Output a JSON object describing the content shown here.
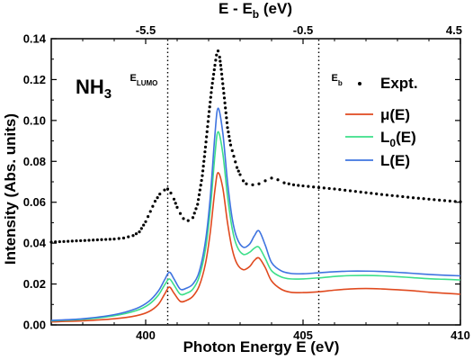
{
  "chart_data": {
    "type": "line",
    "title": "",
    "xlabel": "Photon Energy E (eV)",
    "ylabel": "Intensity (Abs. units)",
    "top_xlabel": "E - E",
    "top_xlabel_sub": "b",
    "top_xlabel_unit": " (eV)",
    "xlim": [
      397,
      410
    ],
    "ylim": [
      0,
      0.14
    ],
    "x_ticks": [
      400,
      405,
      410
    ],
    "y_ticks": [
      "0.00",
      "0.02",
      "0.04",
      "0.06",
      "0.08",
      "0.10",
      "0.12",
      "0.14"
    ],
    "top_ticks": [
      {
        "label": "-5.5",
        "x": 400
      },
      {
        "label": "-0.5",
        "x": 405
      },
      {
        "label": "4.5",
        "x": 410
      }
    ],
    "molecule": {
      "main": "NH",
      "sub": "3"
    },
    "vlines": [
      {
        "x": 400.7,
        "label": "E",
        "sub": "LUMO"
      },
      {
        "x": 405.5,
        "label": "E",
        "sub": "b"
      }
    ],
    "legend_position": "top-right",
    "series": [
      {
        "name": "Expt.",
        "name_main": "Expt.",
        "name_sub": "",
        "name_tail": "",
        "style": "dots",
        "color": "#000000",
        "x": [
          397.0,
          397.4,
          397.8,
          398.2,
          398.6,
          399.0,
          399.3,
          399.6,
          399.8,
          400.0,
          400.15,
          400.3,
          400.45,
          400.6,
          400.7,
          400.8,
          400.9,
          401.0,
          401.1,
          401.2,
          401.35,
          401.5,
          401.65,
          401.8,
          401.9,
          402.0,
          402.1,
          402.2,
          402.25,
          402.3,
          402.35,
          402.4,
          402.5,
          402.6,
          402.7,
          402.8,
          402.9,
          403.0,
          403.1,
          403.2,
          403.4,
          403.6,
          403.8,
          404.0,
          404.2,
          404.4,
          404.7,
          405.0,
          405.5,
          406.0,
          406.5,
          407.0,
          407.5,
          408.0,
          408.5,
          409.0,
          409.5,
          410.0
        ],
        "y": [
          0.0405,
          0.0408,
          0.0411,
          0.0414,
          0.0417,
          0.042,
          0.0425,
          0.0437,
          0.0455,
          0.0505,
          0.0555,
          0.0605,
          0.064,
          0.066,
          0.0665,
          0.0645,
          0.0615,
          0.0575,
          0.0545,
          0.052,
          0.051,
          0.0525,
          0.059,
          0.073,
          0.087,
          0.102,
          0.116,
          0.127,
          0.132,
          0.134,
          0.131,
          0.125,
          0.111,
          0.0965,
          0.088,
          0.0825,
          0.077,
          0.0735,
          0.0705,
          0.069,
          0.0685,
          0.069,
          0.0705,
          0.0718,
          0.071,
          0.0695,
          0.0685,
          0.068,
          0.0672,
          0.0665,
          0.0656,
          0.0647,
          0.0638,
          0.063,
          0.0622,
          0.0615,
          0.0608,
          0.0602
        ]
      },
      {
        "name": "μ(E)",
        "name_main": "μ(E)",
        "name_sub": "",
        "name_tail": "",
        "style": "line",
        "color": "#e04a1f",
        "x": [
          397.0,
          398.0,
          399.0,
          399.7,
          400.1,
          400.4,
          400.6,
          400.75,
          400.9,
          401.1,
          401.3,
          401.5,
          401.7,
          401.9,
          402.05,
          402.2,
          402.3,
          402.45,
          402.6,
          402.75,
          402.9,
          403.1,
          403.3,
          403.45,
          403.6,
          403.8,
          404.0,
          404.3,
          404.6,
          405.0,
          405.5,
          406.0,
          406.5,
          407.0,
          407.5,
          408.0,
          408.5,
          409.0,
          409.5,
          410.0
        ],
        "y": [
          0.0015,
          0.002,
          0.003,
          0.0045,
          0.0065,
          0.01,
          0.015,
          0.0185,
          0.0155,
          0.0115,
          0.012,
          0.014,
          0.019,
          0.03,
          0.045,
          0.066,
          0.0745,
          0.067,
          0.05,
          0.037,
          0.03,
          0.027,
          0.0285,
          0.0315,
          0.0327,
          0.028,
          0.0215,
          0.0175,
          0.016,
          0.0158,
          0.0162,
          0.017,
          0.0176,
          0.0178,
          0.0176,
          0.0172,
          0.0167,
          0.016,
          0.0155,
          0.015
        ]
      },
      {
        "name": "L0(E)",
        "name_main": "L",
        "name_sub": "0",
        "name_tail": "(E)",
        "style": "line",
        "color": "#3ddf8a",
        "x": [
          397.0,
          398.0,
          399.0,
          399.7,
          400.1,
          400.4,
          400.6,
          400.75,
          400.9,
          401.1,
          401.3,
          401.5,
          401.7,
          401.9,
          402.05,
          402.2,
          402.3,
          402.45,
          402.6,
          402.75,
          402.9,
          403.1,
          403.3,
          403.45,
          403.6,
          403.8,
          404.0,
          404.3,
          404.6,
          405.0,
          405.5,
          406.0,
          406.5,
          407.0,
          407.5,
          408.0,
          408.5,
          409.0,
          409.5,
          410.0
        ],
        "y": [
          0.002,
          0.0027,
          0.0045,
          0.007,
          0.01,
          0.0145,
          0.0195,
          0.0225,
          0.0195,
          0.015,
          0.0155,
          0.0175,
          0.0235,
          0.037,
          0.056,
          0.083,
          0.0945,
          0.084,
          0.063,
          0.047,
          0.0385,
          0.0345,
          0.0355,
          0.0375,
          0.038,
          0.0325,
          0.0265,
          0.0235,
          0.0225,
          0.0225,
          0.023,
          0.0237,
          0.0241,
          0.0242,
          0.024,
          0.0236,
          0.0231,
          0.0226,
          0.0223,
          0.022
        ]
      },
      {
        "name": "L(E)",
        "name_main": "L(E)",
        "name_sub": "",
        "name_tail": "",
        "style": "line",
        "color": "#3f74e0",
        "x": [
          397.0,
          398.0,
          399.0,
          399.7,
          400.1,
          400.4,
          400.6,
          400.75,
          400.9,
          401.1,
          401.3,
          401.5,
          401.7,
          401.9,
          402.05,
          402.2,
          402.3,
          402.45,
          402.6,
          402.75,
          402.9,
          403.1,
          403.3,
          403.45,
          403.6,
          403.8,
          404.0,
          404.3,
          404.6,
          405.0,
          405.5,
          406.0,
          406.5,
          407.0,
          407.5,
          408.0,
          408.5,
          409.0,
          409.5,
          410.0
        ],
        "y": [
          0.0022,
          0.003,
          0.005,
          0.008,
          0.0115,
          0.0165,
          0.022,
          0.0258,
          0.0225,
          0.0175,
          0.018,
          0.02,
          0.026,
          0.041,
          0.062,
          0.093,
          0.106,
          0.094,
          0.07,
          0.052,
          0.0425,
          0.038,
          0.0395,
          0.0435,
          0.046,
          0.039,
          0.0305,
          0.0265,
          0.0252,
          0.025,
          0.0255,
          0.026,
          0.0263,
          0.0263,
          0.0261,
          0.0257,
          0.0252,
          0.0247,
          0.0243,
          0.024
        ]
      }
    ]
  }
}
